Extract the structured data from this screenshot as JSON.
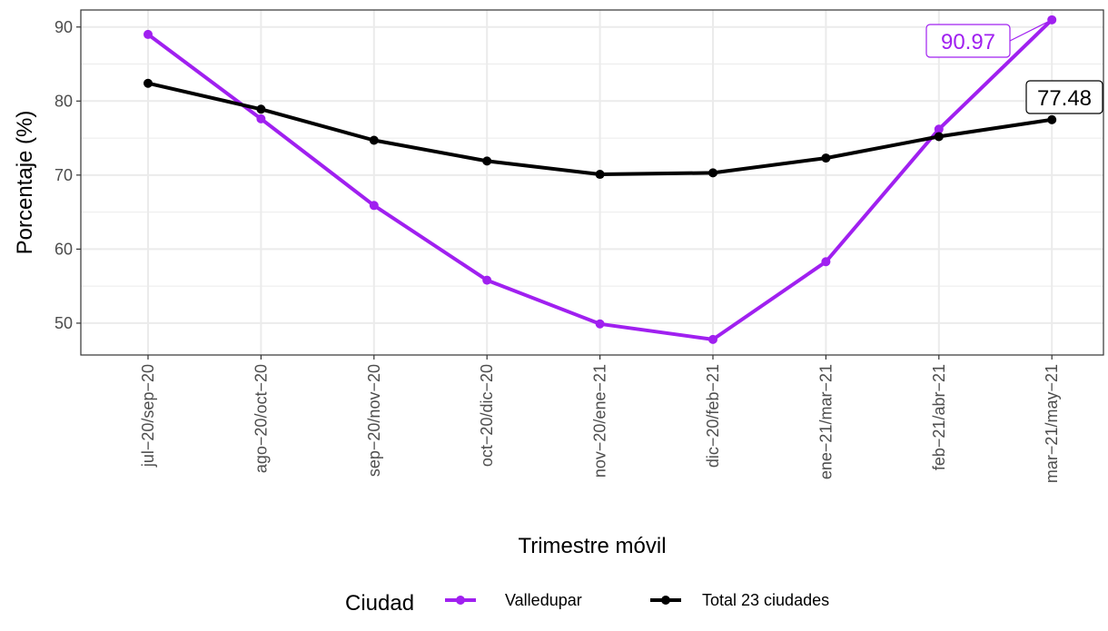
{
  "chart_data": {
    "type": "line",
    "title": "",
    "xlabel": "Trimestre móvil",
    "ylabel": "Porcentaje (%)",
    "categories": [
      "jul−20/sep−20",
      "ago−20/oct−20",
      "sep−20/nov−20",
      "oct−20/dic−20",
      "nov−20/ene−21",
      "dic−20/feb−21",
      "ene−21/mar−21",
      "feb−21/abr−21",
      "mar−21/may−21"
    ],
    "ylim": [
      45.7,
      92.3
    ],
    "yticks": [
      50,
      60,
      70,
      80,
      90
    ],
    "grid": true,
    "legend": {
      "title": "Ciudad",
      "position": "bottom"
    },
    "series": [
      {
        "name": "Valledupar",
        "color": "#a020f0",
        "values": [
          89.0,
          77.6,
          65.9,
          55.8,
          49.9,
          47.8,
          58.3,
          76.2,
          90.97
        ]
      },
      {
        "name": "Total 23 ciudades",
        "color": "#000000",
        "values": [
          82.4,
          78.9,
          74.7,
          71.9,
          70.1,
          70.3,
          72.3,
          75.2,
          77.48
        ]
      }
    ],
    "labels": [
      {
        "series": 0,
        "index": 8,
        "text": "90.97"
      },
      {
        "series": 1,
        "index": 8,
        "text": "77.48"
      }
    ]
  }
}
